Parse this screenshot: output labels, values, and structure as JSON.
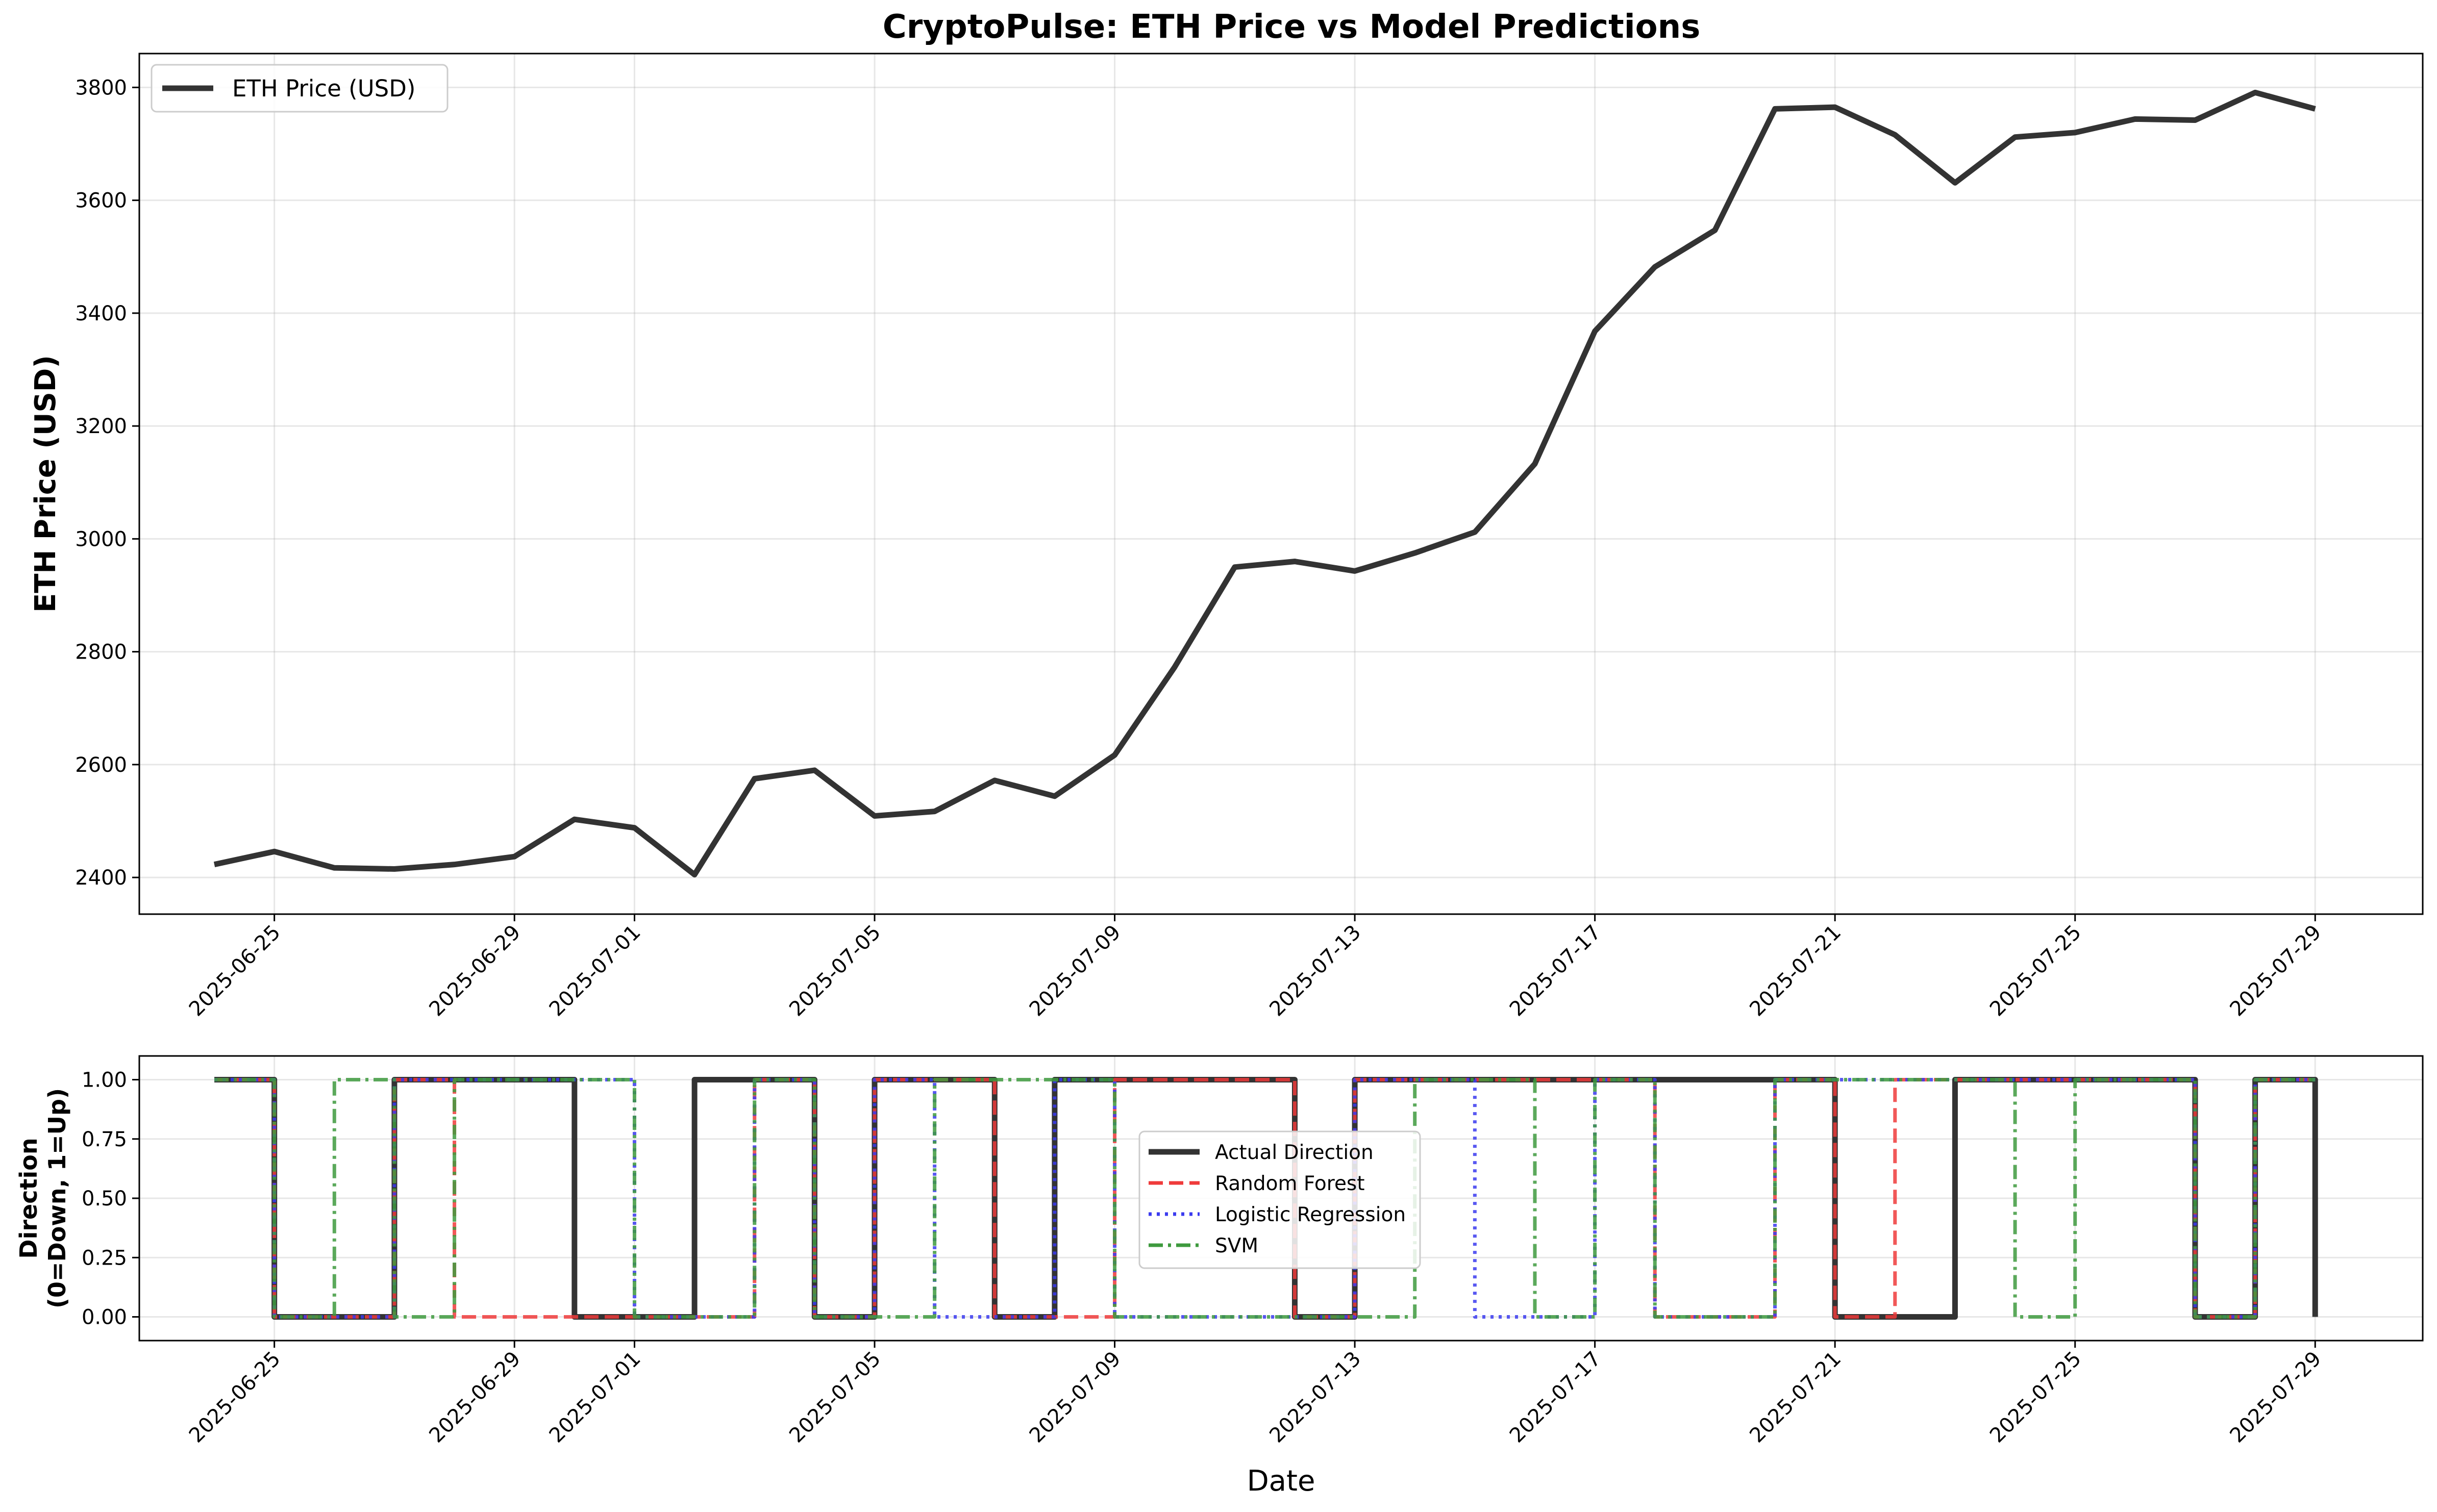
{
  "figure": {
    "title": "CryptoPulse: ETH Price vs Model Predictions"
  },
  "chart_data": [
    {
      "type": "line",
      "title": "CryptoPulse: ETH Price vs Model Predictions",
      "xlabel": "",
      "ylabel": "ETH Price (USD)",
      "x_tick_labels": [
        "2025-06-25",
        "2025-06-29",
        "2025-07-01",
        "2025-07-05",
        "2025-07-09",
        "2025-07-13",
        "2025-07-17",
        "2025-07-21",
        "2025-07-25",
        "2025-07-29"
      ],
      "y_ticks": [
        2400,
        2600,
        2800,
        3000,
        3200,
        3400,
        3600,
        3800
      ],
      "ylim": [
        2335,
        3860
      ],
      "xlim": [
        "2025-06-22T18:00",
        "2025-07-30T19:00"
      ],
      "grid": true,
      "legend": "upper-left",
      "dates": [
        "2025-06-24",
        "2025-06-25",
        "2025-06-26",
        "2025-06-27",
        "2025-06-28",
        "2025-06-29",
        "2025-06-30",
        "2025-07-01",
        "2025-07-02",
        "2025-07-03",
        "2025-07-04",
        "2025-07-05",
        "2025-07-06",
        "2025-07-07",
        "2025-07-08",
        "2025-07-09",
        "2025-07-10",
        "2025-07-11",
        "2025-07-12",
        "2025-07-13",
        "2025-07-14",
        "2025-07-15",
        "2025-07-16",
        "2025-07-17",
        "2025-07-18",
        "2025-07-19",
        "2025-07-20",
        "2025-07-21",
        "2025-07-22",
        "2025-07-23",
        "2025-07-24",
        "2025-07-25",
        "2025-07-26",
        "2025-07-27",
        "2025-07-28",
        "2025-07-29"
      ],
      "series": [
        {
          "name": "ETH Price (USD)",
          "color": "#333333",
          "style": "solid",
          "values": [
            2423,
            2446,
            2417,
            2415,
            2423,
            2437,
            2503,
            2488,
            2405,
            2575,
            2590,
            2509,
            2517,
            2572,
            2544,
            2617,
            2773,
            2950,
            2960,
            2943,
            2975,
            3012,
            3133,
            3368,
            3482,
            3547,
            3762,
            3765,
            3716,
            3631,
            3712,
            3720,
            3744,
            3742,
            3791,
            3762
          ]
        }
      ]
    },
    {
      "type": "line",
      "step": "post",
      "xlabel": "Date",
      "ylabel": "Direction\n(0=Down, 1=Up)",
      "ylabel_lines": [
        "Direction",
        "(0=Down, 1=Up)"
      ],
      "x_tick_labels": [
        "2025-06-25",
        "2025-06-29",
        "2025-07-01",
        "2025-07-05",
        "2025-07-09",
        "2025-07-13",
        "2025-07-17",
        "2025-07-21",
        "2025-07-25",
        "2025-07-29"
      ],
      "y_ticks": [
        0.0,
        0.25,
        0.5,
        0.75,
        1.0
      ],
      "y_tick_labels": [
        "0.00",
        "0.25",
        "0.50",
        "0.75",
        "1.00"
      ],
      "ylim": [
        -0.1,
        1.1
      ],
      "xlim": [
        "2025-06-22T18:00",
        "2025-07-30T19:00"
      ],
      "grid": true,
      "legend": "center",
      "dates": [
        "2025-06-24",
        "2025-06-25",
        "2025-06-26",
        "2025-06-27",
        "2025-06-28",
        "2025-06-29",
        "2025-06-30",
        "2025-07-01",
        "2025-07-02",
        "2025-07-03",
        "2025-07-04",
        "2025-07-05",
        "2025-07-06",
        "2025-07-07",
        "2025-07-08",
        "2025-07-09",
        "2025-07-10",
        "2025-07-11",
        "2025-07-12",
        "2025-07-13",
        "2025-07-14",
        "2025-07-15",
        "2025-07-16",
        "2025-07-17",
        "2025-07-18",
        "2025-07-19",
        "2025-07-20",
        "2025-07-21",
        "2025-07-22",
        "2025-07-23",
        "2025-07-24",
        "2025-07-25",
        "2025-07-26",
        "2025-07-27",
        "2025-07-28",
        "2025-07-29"
      ],
      "series": [
        {
          "name": "Actual Direction",
          "color": "#333333",
          "style": "solid",
          "values": [
            1,
            0,
            0,
            1,
            1,
            1,
            0,
            0,
            1,
            1,
            0,
            1,
            1,
            0,
            1,
            1,
            1,
            1,
            0,
            1,
            1,
            1,
            1,
            1,
            1,
            1,
            1,
            0,
            0,
            1,
            1,
            1,
            1,
            0,
            1,
            0
          ]
        },
        {
          "name": "Random Forest",
          "color": "#ef3b3b",
          "style": "dashed",
          "values": [
            1,
            0,
            0,
            1,
            0,
            0,
            0,
            0,
            0,
            1,
            0,
            1,
            1,
            0,
            0,
            1,
            1,
            1,
            0,
            1,
            1,
            1,
            1,
            1,
            0,
            0,
            1,
            0,
            1,
            1,
            1,
            1,
            1,
            0,
            1,
            1
          ]
        },
        {
          "name": "Logistic Regression",
          "color": "#3b3bef",
          "style": "dotted",
          "values": [
            1,
            0,
            0,
            1,
            1,
            1,
            1,
            0,
            0,
            1,
            0,
            1,
            0,
            0,
            1,
            0,
            0,
            0,
            0,
            1,
            1,
            0,
            0,
            1,
            0,
            0,
            1,
            1,
            1,
            1,
            1,
            1,
            1,
            0,
            1,
            1
          ]
        },
        {
          "name": "SVM",
          "color": "#3e9a3e",
          "style": "dashdot",
          "values": [
            1,
            0,
            1,
            0,
            1,
            1,
            1,
            0,
            0,
            1,
            0,
            0,
            1,
            1,
            1,
            0,
            0,
            0,
            0,
            0,
            1,
            1,
            0,
            1,
            0,
            0,
            1,
            1,
            1,
            1,
            0,
            1,
            1,
            0,
            1,
            1
          ]
        }
      ]
    }
  ]
}
